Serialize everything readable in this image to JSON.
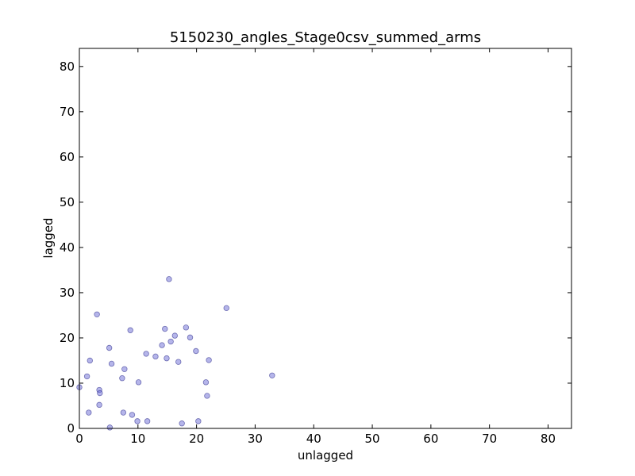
{
  "chart_data": {
    "type": "scatter",
    "title": "5150230_angles_Stage0csv_summed_arms",
    "xlabel": "unlagged",
    "ylabel": "lagged",
    "xlim": [
      0,
      84
    ],
    "ylim": [
      0,
      84
    ],
    "xticks": [
      0,
      10,
      20,
      30,
      40,
      50,
      60,
      70,
      80
    ],
    "yticks": [
      0,
      10,
      20,
      30,
      40,
      50,
      60,
      70,
      80
    ],
    "grid": false,
    "marker_color": "#6b6bd6",
    "points": [
      {
        "x": 0.0,
        "y": 9.1
      },
      {
        "x": 1.3,
        "y": 11.5
      },
      {
        "x": 1.6,
        "y": 3.5
      },
      {
        "x": 1.8,
        "y": 15.0
      },
      {
        "x": 3.0,
        "y": 25.2
      },
      {
        "x": 3.4,
        "y": 8.5
      },
      {
        "x": 3.5,
        "y": 7.8
      },
      {
        "x": 3.4,
        "y": 5.2
      },
      {
        "x": 5.1,
        "y": 17.8
      },
      {
        "x": 5.2,
        "y": 0.2
      },
      {
        "x": 5.5,
        "y": 14.3
      },
      {
        "x": 7.3,
        "y": 11.1
      },
      {
        "x": 7.5,
        "y": 3.5
      },
      {
        "x": 7.7,
        "y": 13.1
      },
      {
        "x": 8.7,
        "y": 21.7
      },
      {
        "x": 9.0,
        "y": 3.0
      },
      {
        "x": 9.9,
        "y": 1.6
      },
      {
        "x": 10.1,
        "y": 10.2
      },
      {
        "x": 11.4,
        "y": 16.5
      },
      {
        "x": 11.6,
        "y": 1.6
      },
      {
        "x": 13.0,
        "y": 15.9
      },
      {
        "x": 14.1,
        "y": 18.4
      },
      {
        "x": 14.6,
        "y": 22.0
      },
      {
        "x": 14.9,
        "y": 15.5
      },
      {
        "x": 15.3,
        "y": 33.0
      },
      {
        "x": 15.6,
        "y": 19.2
      },
      {
        "x": 16.3,
        "y": 20.5
      },
      {
        "x": 16.9,
        "y": 14.7
      },
      {
        "x": 17.5,
        "y": 1.1
      },
      {
        "x": 18.2,
        "y": 22.3
      },
      {
        "x": 18.9,
        "y": 20.1
      },
      {
        "x": 19.9,
        "y": 17.1
      },
      {
        "x": 20.3,
        "y": 1.6
      },
      {
        "x": 21.6,
        "y": 10.2
      },
      {
        "x": 21.8,
        "y": 7.2
      },
      {
        "x": 22.1,
        "y": 15.1
      },
      {
        "x": 25.1,
        "y": 26.6
      },
      {
        "x": 32.9,
        "y": 11.7
      }
    ]
  }
}
